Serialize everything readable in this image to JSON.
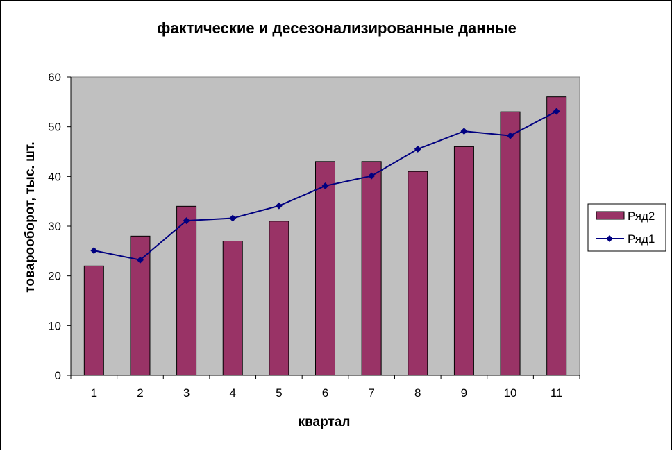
{
  "chart_data": {
    "type": "bar",
    "title": "фактические и десезонализированные данные",
    "xlabel": "квартал",
    "ylabel": "товарооборот, тыс. шт.",
    "categories": [
      "1",
      "2",
      "3",
      "4",
      "5",
      "6",
      "7",
      "8",
      "9",
      "10",
      "11"
    ],
    "ylim": [
      0,
      60
    ],
    "yticks": [
      "0",
      "10",
      "20",
      "30",
      "40",
      "50",
      "60"
    ],
    "grid": false,
    "legend_position": "right",
    "plot_background": "#c0c0c0",
    "series": [
      {
        "name": "Ряд2",
        "type": "bar",
        "color": "#993366",
        "values": [
          22,
          28,
          34,
          27,
          31,
          43,
          43,
          41,
          46,
          53,
          56
        ]
      },
      {
        "name": "Ряд1",
        "type": "line",
        "marker": "diamond",
        "color": "#000080",
        "values": [
          25.1,
          23.2,
          31.1,
          31.6,
          34.1,
          38.1,
          40.1,
          45.5,
          49.1,
          48.2,
          53.1
        ]
      }
    ]
  }
}
